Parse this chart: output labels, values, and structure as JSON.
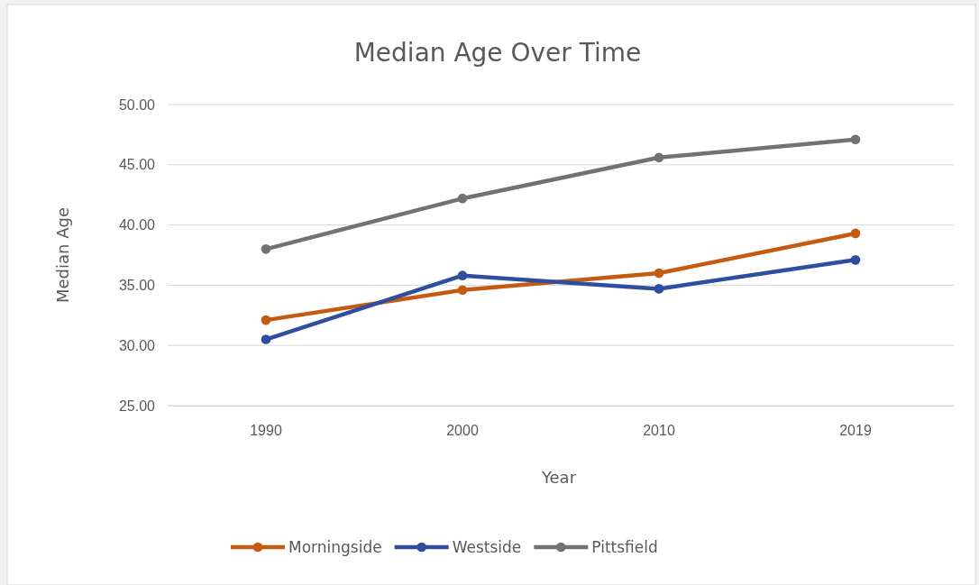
{
  "chart_data": {
    "type": "line",
    "title": "Median Age Over Time",
    "xlabel": "Year",
    "ylabel": "Median Age",
    "categories": [
      "1990",
      "2000",
      "2010",
      "2019"
    ],
    "series": [
      {
        "name": "Morningside",
        "color": "#c55a11",
        "values": [
          32.1,
          34.6,
          36.0,
          39.3
        ]
      },
      {
        "name": "Westside",
        "color": "#2f4ea0",
        "values": [
          30.5,
          35.8,
          34.7,
          37.1
        ]
      },
      {
        "name": "Pittsfield",
        "color": "#767171",
        "values": [
          38.0,
          42.2,
          45.6,
          47.1
        ]
      }
    ],
    "ylim": [
      25,
      50
    ],
    "yticks": [
      {
        "value": 25,
        "label": "25.00"
      },
      {
        "value": 30,
        "label": "30.00"
      },
      {
        "value": 35,
        "label": "35.00"
      },
      {
        "value": 40,
        "label": "40.00"
      },
      {
        "value": 45,
        "label": "45.00"
      },
      {
        "value": 50,
        "label": "50.00"
      }
    ],
    "grid": "y",
    "legend": "bottom",
    "marker": "circle",
    "line_style": "solid"
  }
}
